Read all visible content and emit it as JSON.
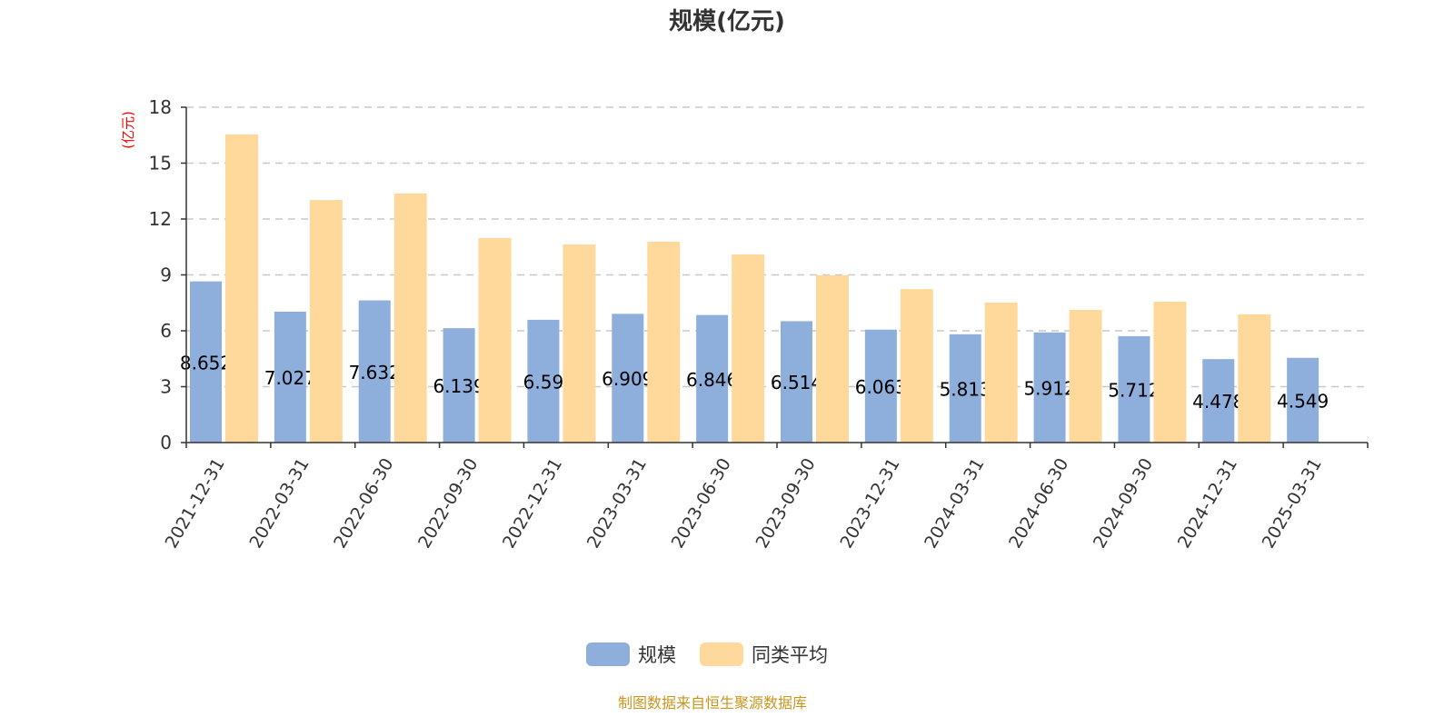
{
  "chart_data": {
    "type": "bar",
    "title": "规模(亿元)",
    "ylabel": "(亿元)",
    "ylim": [
      0,
      18
    ],
    "yticks": [
      0,
      3,
      6,
      9,
      12,
      15,
      18
    ],
    "grid": true,
    "legend_placement": "bottom",
    "categories": [
      "2021-12-31",
      "2022-03-31",
      "2022-06-30",
      "2022-09-30",
      "2022-12-31",
      "2023-03-31",
      "2023-06-30",
      "2023-09-30",
      "2023-12-31",
      "2024-03-31",
      "2024-06-30",
      "2024-09-30",
      "2024-12-31",
      "2025-03-31"
    ],
    "series": [
      {
        "name": "规模",
        "color": "#8eaedb",
        "values": [
          8.652,
          7.027,
          7.632,
          6.139,
          6.59,
          6.909,
          6.846,
          6.514,
          6.063,
          5.813,
          5.912,
          5.712,
          4.478,
          4.549
        ],
        "labels": [
          "8.652",
          "7.027",
          "7.632",
          "6.139",
          "6.59",
          "6.909",
          "6.846",
          "6.514",
          "6.063",
          "5.813",
          "5.912",
          "5.712",
          "4.478",
          "4.549"
        ]
      },
      {
        "name": "同类平均",
        "color": "#ffd99b",
        "values": [
          16.54,
          13.02,
          13.37,
          10.98,
          10.63,
          10.78,
          10.1,
          8.98,
          8.24,
          7.51,
          7.12,
          7.56,
          6.88,
          null
        ]
      }
    ]
  },
  "source": "制图数据来自恒生聚源数据库"
}
